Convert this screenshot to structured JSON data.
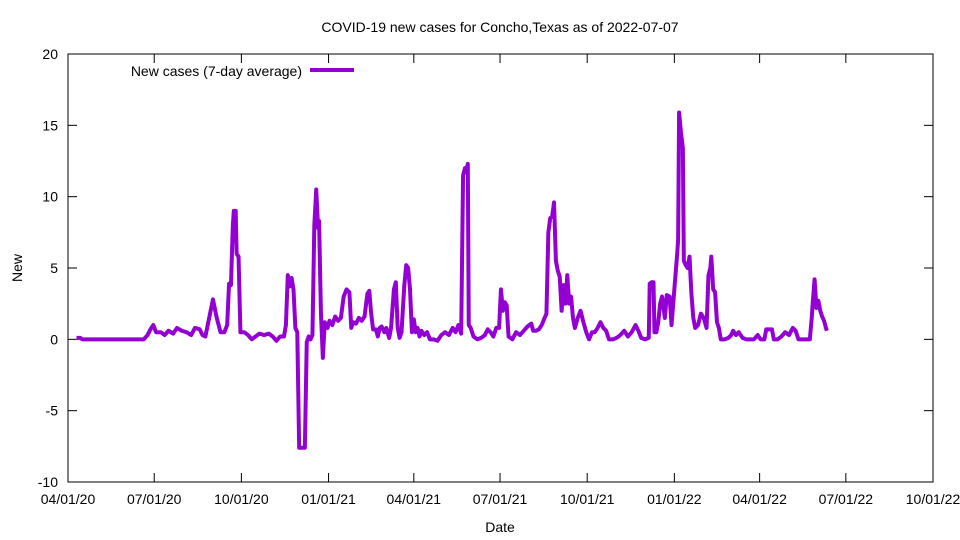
{
  "chart_data": {
    "type": "line",
    "title": "COVID-19 new cases for Concho,Texas as of 2022-07-07",
    "xlabel": "Date",
    "ylabel": "New",
    "ylim": [
      -10,
      20
    ],
    "yticks": [
      -10,
      -5,
      0,
      5,
      10,
      15,
      20
    ],
    "xlim": [
      "2020-04-01",
      "2022-10-01"
    ],
    "xticks": [
      "2020-04-01",
      "2020-07-01",
      "2020-10-01",
      "2021-01-01",
      "2021-04-01",
      "2021-07-01",
      "2021-10-01",
      "2022-01-01",
      "2022-04-01",
      "2022-07-01",
      "2022-10-01"
    ],
    "xtick_labels": [
      "04/01/20",
      "07/01/20",
      "10/01/20",
      "01/01/21",
      "04/01/21",
      "07/01/21",
      "10/01/21",
      "01/01/22",
      "04/01/22",
      "07/01/22",
      "10/01/22"
    ],
    "grid": false,
    "legend_position": "top-left",
    "series": [
      {
        "name": "New cases (7-day average)",
        "color": "#9400D3",
        "points": [
          [
            "2020-04-10",
            0.1
          ],
          [
            "2020-04-14",
            0.1
          ],
          [
            "2020-04-16",
            0
          ],
          [
            "2020-06-20",
            0
          ],
          [
            "2020-06-24",
            0.3
          ],
          [
            "2020-06-27",
            0.7
          ],
          [
            "2020-06-30",
            1.0
          ],
          [
            "2020-07-03",
            0.5
          ],
          [
            "2020-07-08",
            0.5
          ],
          [
            "2020-07-12",
            0.3
          ],
          [
            "2020-07-16",
            0.6
          ],
          [
            "2020-07-21",
            0.4
          ],
          [
            "2020-07-25",
            0.8
          ],
          [
            "2020-07-30",
            0.6
          ],
          [
            "2020-08-04",
            0.5
          ],
          [
            "2020-08-09",
            0.3
          ],
          [
            "2020-08-13",
            0.8
          ],
          [
            "2020-08-18",
            0.7
          ],
          [
            "2020-08-21",
            0.3
          ],
          [
            "2020-08-24",
            0.2
          ],
          [
            "2020-08-28",
            1.5
          ],
          [
            "2020-09-01",
            2.8
          ],
          [
            "2020-09-05",
            1.5
          ],
          [
            "2020-09-09",
            0.5
          ],
          [
            "2020-09-13",
            0.5
          ],
          [
            "2020-09-16",
            1.0
          ],
          [
            "2020-09-18",
            3.9
          ],
          [
            "2020-09-20",
            3.8
          ],
          [
            "2020-09-22",
            8.0
          ],
          [
            "2020-09-23",
            9.0
          ],
          [
            "2020-09-25",
            9.0
          ],
          [
            "2020-09-26",
            6.0
          ],
          [
            "2020-09-28",
            5.8
          ],
          [
            "2020-09-30",
            0.5
          ],
          [
            "2020-10-04",
            0.5
          ],
          [
            "2020-10-08",
            0.3
          ],
          [
            "2020-10-12",
            0.0
          ],
          [
            "2020-10-16",
            0.2
          ],
          [
            "2020-10-20",
            0.4
          ],
          [
            "2020-10-25",
            0.3
          ],
          [
            "2020-10-30",
            0.4
          ],
          [
            "2020-11-03",
            0.2
          ],
          [
            "2020-11-07",
            -0.1
          ],
          [
            "2020-11-11",
            0.2
          ],
          [
            "2020-11-15",
            0.2
          ],
          [
            "2020-11-17",
            1.0
          ],
          [
            "2020-11-19",
            4.5
          ],
          [
            "2020-11-21",
            3.7
          ],
          [
            "2020-11-23",
            4.3
          ],
          [
            "2020-11-25",
            3.5
          ],
          [
            "2020-11-27",
            0.8
          ],
          [
            "2020-11-29",
            0.5
          ],
          [
            "2020-12-01",
            -7.6
          ],
          [
            "2020-12-07",
            -7.6
          ],
          [
            "2020-12-09",
            -0.2
          ],
          [
            "2020-12-11",
            0.2
          ],
          [
            "2020-12-13",
            0.0
          ],
          [
            "2020-12-15",
            0.3
          ],
          [
            "2020-12-17",
            8.0
          ],
          [
            "2020-12-19",
            10.5
          ],
          [
            "2020-12-21",
            7.8
          ],
          [
            "2020-12-22",
            8.3
          ],
          [
            "2020-12-24",
            1.8
          ],
          [
            "2020-12-26",
            -1.3
          ],
          [
            "2020-12-28",
            1.2
          ],
          [
            "2020-12-31",
            0.8
          ],
          [
            "2021-01-02",
            1.3
          ],
          [
            "2021-01-05",
            1.0
          ],
          [
            "2021-01-08",
            1.6
          ],
          [
            "2021-01-11",
            1.3
          ],
          [
            "2021-01-14",
            1.5
          ],
          [
            "2021-01-17",
            3.0
          ],
          [
            "2021-01-20",
            3.5
          ],
          [
            "2021-01-23",
            3.3
          ],
          [
            "2021-01-25",
            0.8
          ],
          [
            "2021-01-27",
            1.2
          ],
          [
            "2021-01-30",
            1.1
          ],
          [
            "2021-02-02",
            1.5
          ],
          [
            "2021-02-05",
            1.3
          ],
          [
            "2021-02-08",
            1.6
          ],
          [
            "2021-02-11",
            3.2
          ],
          [
            "2021-02-13",
            3.4
          ],
          [
            "2021-02-15",
            1.8
          ],
          [
            "2021-02-17",
            0.7
          ],
          [
            "2021-02-20",
            0.7
          ],
          [
            "2021-02-22",
            0.2
          ],
          [
            "2021-02-24",
            0.8
          ],
          [
            "2021-02-26",
            0.9
          ],
          [
            "2021-03-01",
            0.5
          ],
          [
            "2021-03-03",
            0.8
          ],
          [
            "2021-03-06",
            0.1
          ],
          [
            "2021-03-08",
            0.8
          ],
          [
            "2021-03-11",
            3.5
          ],
          [
            "2021-03-13",
            4.0
          ],
          [
            "2021-03-15",
            0.8
          ],
          [
            "2021-03-17",
            0.1
          ],
          [
            "2021-03-19",
            0.5
          ],
          [
            "2021-03-22",
            3.8
          ],
          [
            "2021-03-24",
            5.2
          ],
          [
            "2021-03-26",
            5.0
          ],
          [
            "2021-03-28",
            3.5
          ],
          [
            "2021-03-30",
            0.5
          ],
          [
            "2021-04-01",
            1.4
          ],
          [
            "2021-04-03",
            0.5
          ],
          [
            "2021-04-05",
            0.8
          ],
          [
            "2021-04-07",
            0.2
          ],
          [
            "2021-04-09",
            0.6
          ],
          [
            "2021-04-12",
            0.3
          ],
          [
            "2021-04-15",
            0.5
          ],
          [
            "2021-04-18",
            0.0
          ],
          [
            "2021-04-22",
            0.0
          ],
          [
            "2021-04-26",
            -0.1
          ],
          [
            "2021-04-30",
            0.3
          ],
          [
            "2021-05-04",
            0.5
          ],
          [
            "2021-05-08",
            0.3
          ],
          [
            "2021-05-12",
            0.8
          ],
          [
            "2021-05-15",
            0.5
          ],
          [
            "2021-05-18",
            1.0
          ],
          [
            "2021-05-21",
            0.4
          ],
          [
            "2021-05-23",
            11.5
          ],
          [
            "2021-05-25",
            12.0
          ],
          [
            "2021-05-26",
            11.7
          ],
          [
            "2021-05-28",
            12.3
          ],
          [
            "2021-05-29",
            1.0
          ],
          [
            "2021-05-31",
            0.8
          ],
          [
            "2021-06-03",
            0.2
          ],
          [
            "2021-06-07",
            0.0
          ],
          [
            "2021-06-11",
            0.1
          ],
          [
            "2021-06-15",
            0.3
          ],
          [
            "2021-06-18",
            0.7
          ],
          [
            "2021-06-21",
            0.5
          ],
          [
            "2021-06-24",
            0.2
          ],
          [
            "2021-06-27",
            0.8
          ],
          [
            "2021-06-30",
            0.8
          ],
          [
            "2021-07-02",
            3.5
          ],
          [
            "2021-07-04",
            2.0
          ],
          [
            "2021-07-06",
            2.6
          ],
          [
            "2021-07-08",
            2.4
          ],
          [
            "2021-07-10",
            0.2
          ],
          [
            "2021-07-14",
            0.0
          ],
          [
            "2021-07-18",
            0.5
          ],
          [
            "2021-07-22",
            0.3
          ],
          [
            "2021-07-26",
            0.6
          ],
          [
            "2021-07-30",
            0.9
          ],
          [
            "2021-08-03",
            1.1
          ],
          [
            "2021-08-05",
            0.6
          ],
          [
            "2021-08-08",
            0.6
          ],
          [
            "2021-08-11",
            0.7
          ],
          [
            "2021-08-14",
            1.0
          ],
          [
            "2021-08-17",
            1.5
          ],
          [
            "2021-08-19",
            1.8
          ],
          [
            "2021-08-21",
            7.5
          ],
          [
            "2021-08-23",
            8.5
          ],
          [
            "2021-08-25",
            8.6
          ],
          [
            "2021-08-27",
            9.6
          ],
          [
            "2021-08-29",
            5.5
          ],
          [
            "2021-08-31",
            4.8
          ],
          [
            "2021-09-02",
            4.4
          ],
          [
            "2021-09-04",
            2.0
          ],
          [
            "2021-09-06",
            3.8
          ],
          [
            "2021-09-08",
            2.5
          ],
          [
            "2021-09-10",
            4.5
          ],
          [
            "2021-09-12",
            2.5
          ],
          [
            "2021-09-14",
            3.0
          ],
          [
            "2021-09-16",
            1.5
          ],
          [
            "2021-09-18",
            0.8
          ],
          [
            "2021-09-21",
            1.5
          ],
          [
            "2021-09-24",
            2.0
          ],
          [
            "2021-09-27",
            1.2
          ],
          [
            "2021-09-30",
            0.5
          ],
          [
            "2021-10-03",
            0.0
          ],
          [
            "2021-10-06",
            0.5
          ],
          [
            "2021-10-09",
            0.5
          ],
          [
            "2021-10-12",
            0.8
          ],
          [
            "2021-10-15",
            1.2
          ],
          [
            "2021-10-18",
            0.8
          ],
          [
            "2021-10-21",
            0.6
          ],
          [
            "2021-10-24",
            0.0
          ],
          [
            "2021-10-28",
            0.0
          ],
          [
            "2021-11-01",
            0.1
          ],
          [
            "2021-11-05",
            0.3
          ],
          [
            "2021-11-09",
            0.6
          ],
          [
            "2021-11-13",
            0.2
          ],
          [
            "2021-11-17",
            0.5
          ],
          [
            "2021-11-21",
            1.0
          ],
          [
            "2021-11-24",
            0.6
          ],
          [
            "2021-11-27",
            0.1
          ],
          [
            "2021-12-01",
            0.0
          ],
          [
            "2021-12-05",
            0.1
          ],
          [
            "2021-12-06",
            3.9
          ],
          [
            "2021-12-08",
            4.0
          ],
          [
            "2021-12-10",
            4.0
          ],
          [
            "2021-12-11",
            0.5
          ],
          [
            "2021-12-13",
            0.5
          ],
          [
            "2021-12-15",
            1.2
          ],
          [
            "2021-12-17",
            2.5
          ],
          [
            "2021-12-19",
            3.0
          ],
          [
            "2021-12-22",
            1.5
          ],
          [
            "2021-12-24",
            3.1
          ],
          [
            "2021-12-27",
            3.0
          ],
          [
            "2021-12-29",
            1.0
          ],
          [
            "2022-01-01",
            3.5
          ],
          [
            "2022-01-04",
            6.0
          ],
          [
            "2022-01-05",
            7.0
          ],
          [
            "2022-01-06",
            15.9
          ],
          [
            "2022-01-08",
            14.5
          ],
          [
            "2022-01-10",
            13.4
          ],
          [
            "2022-01-11",
            5.5
          ],
          [
            "2022-01-13",
            5.2
          ],
          [
            "2022-01-15",
            5.0
          ],
          [
            "2022-01-17",
            5.8
          ],
          [
            "2022-01-19",
            3.2
          ],
          [
            "2022-01-21",
            1.5
          ],
          [
            "2022-01-23",
            0.8
          ],
          [
            "2022-01-26",
            1.0
          ],
          [
            "2022-01-29",
            1.8
          ],
          [
            "2022-02-01",
            1.5
          ],
          [
            "2022-02-04",
            0.8
          ],
          [
            "2022-02-06",
            4.5
          ],
          [
            "2022-02-08",
            5.0
          ],
          [
            "2022-02-09",
            5.8
          ],
          [
            "2022-02-11",
            3.5
          ],
          [
            "2022-02-13",
            3.3
          ],
          [
            "2022-02-15",
            1.2
          ],
          [
            "2022-02-17",
            0.8
          ],
          [
            "2022-02-19",
            0.0
          ],
          [
            "2022-02-23",
            0.0
          ],
          [
            "2022-02-27",
            0.1
          ],
          [
            "2022-03-02",
            0.3
          ],
          [
            "2022-03-04",
            0.6
          ],
          [
            "2022-03-07",
            0.3
          ],
          [
            "2022-03-10",
            0.5
          ],
          [
            "2022-03-14",
            0.1
          ],
          [
            "2022-03-18",
            0.0
          ],
          [
            "2022-03-22",
            0.0
          ],
          [
            "2022-03-26",
            0.0
          ],
          [
            "2022-03-30",
            0.3
          ],
          [
            "2022-04-02",
            0.0
          ],
          [
            "2022-04-06",
            0.0
          ],
          [
            "2022-04-08",
            0.7
          ],
          [
            "2022-04-11",
            0.7
          ],
          [
            "2022-04-14",
            0.7
          ],
          [
            "2022-04-16",
            0.0
          ],
          [
            "2022-04-20",
            0.0
          ],
          [
            "2022-04-24",
            0.2
          ],
          [
            "2022-04-28",
            0.5
          ],
          [
            "2022-05-02",
            0.3
          ],
          [
            "2022-05-06",
            0.8
          ],
          [
            "2022-05-09",
            0.6
          ],
          [
            "2022-05-12",
            0.0
          ],
          [
            "2022-05-16",
            0.0
          ],
          [
            "2022-05-20",
            0.0
          ],
          [
            "2022-05-24",
            0.0
          ],
          [
            "2022-05-26",
            1.5
          ],
          [
            "2022-05-27",
            2.5
          ],
          [
            "2022-05-29",
            4.2
          ],
          [
            "2022-05-31",
            2.2
          ],
          [
            "2022-06-02",
            2.7
          ],
          [
            "2022-06-04",
            2.0
          ],
          [
            "2022-06-06",
            1.6
          ],
          [
            "2022-06-08",
            1.3
          ],
          [
            "2022-06-10",
            0.8
          ],
          [
            "2022-06-11",
            0.6
          ]
        ]
      }
    ]
  }
}
